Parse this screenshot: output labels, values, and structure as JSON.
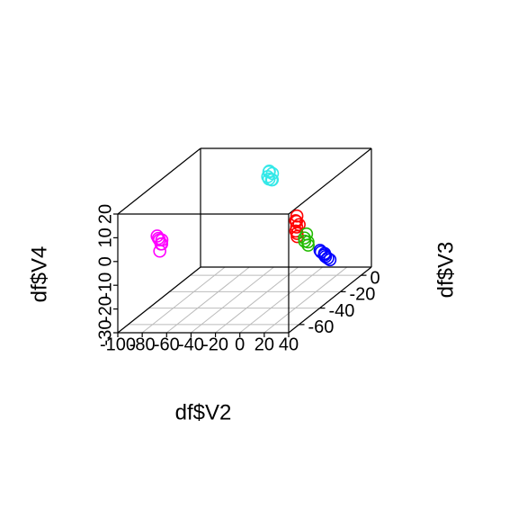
{
  "chart_data": {
    "type": "scatter3d",
    "xlabel": "df$V2",
    "ylabel": "df$V3",
    "zlabel": "df$V4",
    "xlim": [
      -100,
      40
    ],
    "xticks": [
      -100,
      -80,
      -60,
      -40,
      -20,
      0,
      20,
      40
    ],
    "ylim": [
      -70,
      10
    ],
    "yticks": [
      -60,
      -40,
      -20,
      0
    ],
    "zlim": [
      -30,
      20
    ],
    "zticks": [
      -30,
      -20,
      -10,
      0,
      10,
      20
    ],
    "grid": true,
    "series": [
      {
        "color": "#ff00ff",
        "x": [
          -71,
          -69,
          -68,
          -72,
          -70,
          -69,
          -71
        ],
        "y": [
          -65,
          -64,
          -66,
          -65,
          -63,
          -66,
          -64
        ],
        "z": [
          8,
          7,
          6,
          9,
          5,
          3,
          7
        ]
      },
      {
        "color": "#33e8e8",
        "x": [
          -27,
          -25,
          -24,
          -28,
          -26,
          -25,
          -27
        ],
        "y": [
          -10,
          -9,
          -11,
          -10,
          -8,
          -12,
          -10
        ],
        "z": [
          17,
          16,
          14,
          15,
          13,
          18,
          14
        ]
      },
      {
        "color": "#ff0000",
        "x": [
          33,
          35,
          34,
          32,
          36,
          34,
          33,
          35
        ],
        "y": [
          -55,
          -54,
          -56,
          -53,
          -57,
          -55,
          -54,
          -56
        ],
        "z": [
          12,
          10,
          8,
          11,
          6,
          14,
          9,
          7
        ]
      },
      {
        "color": "#22bb00",
        "x": [
          36,
          38,
          37,
          39,
          36
        ],
        "y": [
          -50,
          -49,
          -51,
          -50,
          -48
        ],
        "z": [
          3,
          1,
          2,
          0,
          4
        ]
      },
      {
        "color": "#0000ff",
        "x": [
          42,
          44,
          43,
          45,
          42,
          44,
          43
        ],
        "y": [
          -42,
          -40,
          -38,
          -36,
          -41,
          -37,
          -39
        ],
        "z": [
          -5,
          -7,
          -9,
          -11,
          -6,
          -10,
          -8
        ]
      }
    ]
  }
}
